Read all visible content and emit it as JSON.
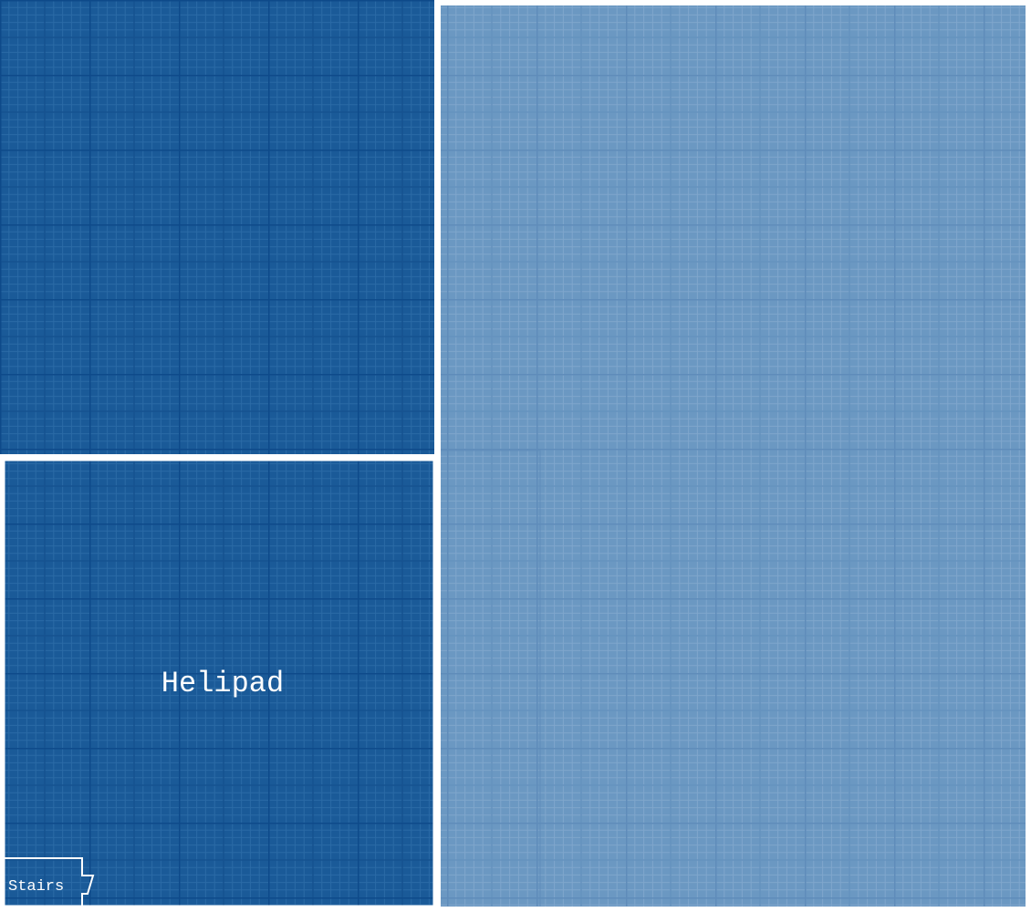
{
  "colors": {
    "background": "#ffffff",
    "dark_room": "#1a5a98",
    "dark_grid_minor": "#2a6aa6",
    "dark_grid_major": "#0e4a8a",
    "light_room": "#6b98c2",
    "light_grid_minor": "#7fa6cc",
    "light_grid_major": "#5f8cba",
    "outline": "#ffffff"
  },
  "rooms": {
    "upper_left": {
      "label": ""
    },
    "helipad": {
      "label": "Helipad"
    },
    "stairs": {
      "label": "Stairs"
    },
    "right_area": {
      "label": ""
    }
  }
}
